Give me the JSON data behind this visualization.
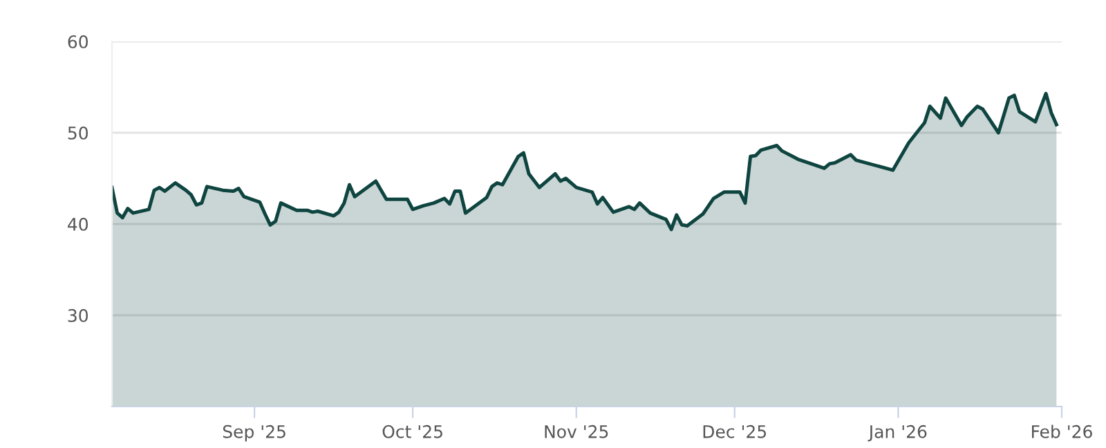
{
  "chart_data": {
    "type": "area",
    "x": [
      "2025-08-05",
      "2025-08-06",
      "2025-08-07",
      "2025-08-08",
      "2025-08-09",
      "2025-08-12",
      "2025-08-13",
      "2025-08-14",
      "2025-08-15",
      "2025-08-17",
      "2025-08-19",
      "2025-08-20",
      "2025-08-21",
      "2025-08-22",
      "2025-08-23",
      "2025-08-26",
      "2025-08-28",
      "2025-08-29",
      "2025-08-30",
      "2025-09-02",
      "2025-09-03",
      "2025-09-04",
      "2025-09-05",
      "2025-09-06",
      "2025-09-09",
      "2025-09-11",
      "2025-09-12",
      "2025-09-13",
      "2025-09-16",
      "2025-09-17",
      "2025-09-18",
      "2025-09-19",
      "2025-09-20",
      "2025-09-24",
      "2025-09-26",
      "2025-09-30",
      "2025-10-01",
      "2025-10-03",
      "2025-10-05",
      "2025-10-07",
      "2025-10-08",
      "2025-10-09",
      "2025-10-10",
      "2025-10-11",
      "2025-10-15",
      "2025-10-16",
      "2025-10-17",
      "2025-10-18",
      "2025-10-21",
      "2025-10-22",
      "2025-10-23",
      "2025-10-25",
      "2025-10-28",
      "2025-10-29",
      "2025-10-30",
      "2025-11-01",
      "2025-11-04",
      "2025-11-05",
      "2025-11-06",
      "2025-11-08",
      "2025-11-11",
      "2025-11-12",
      "2025-11-13",
      "2025-11-15",
      "2025-11-18",
      "2025-11-19",
      "2025-11-20",
      "2025-11-21",
      "2025-11-22",
      "2025-11-25",
      "2025-11-27",
      "2025-11-29",
      "2025-12-02",
      "2025-12-03",
      "2025-12-04",
      "2025-12-05",
      "2025-12-06",
      "2025-12-09",
      "2025-12-10",
      "2025-12-12",
      "2025-12-13",
      "2025-12-16",
      "2025-12-18",
      "2025-12-19",
      "2025-12-20",
      "2025-12-23",
      "2025-12-24",
      "2025-12-31",
      "2026-01-03",
      "2026-01-06",
      "2026-01-07",
      "2026-01-09",
      "2026-01-10",
      "2026-01-13",
      "2026-01-14",
      "2026-01-16",
      "2026-01-17",
      "2026-01-20",
      "2026-01-22",
      "2026-01-23",
      "2026-01-24",
      "2026-01-27",
      "2026-01-29",
      "2026-01-30",
      "2026-01-31"
    ],
    "series": [
      {
        "color": "#0f4540",
        "values": [
          44.0,
          41.2,
          40.7,
          41.7,
          41.2,
          41.6,
          43.7,
          44.0,
          43.6,
          44.5,
          43.7,
          43.2,
          42.1,
          42.3,
          44.1,
          43.7,
          43.6,
          43.9,
          43.0,
          42.4,
          41.1,
          39.9,
          40.3,
          42.3,
          41.5,
          41.5,
          41.3,
          41.4,
          40.9,
          41.3,
          42.3,
          44.3,
          43.0,
          44.7,
          42.7,
          42.7,
          41.6,
          42.0,
          42.3,
          42.8,
          42.2,
          43.6,
          43.6,
          41.2,
          42.9,
          44.1,
          44.5,
          44.3,
          47.4,
          47.8,
          45.5,
          44.0,
          45.5,
          44.7,
          45.0,
          44.0,
          43.5,
          42.2,
          42.9,
          41.3,
          41.9,
          41.6,
          42.3,
          41.2,
          40.5,
          39.4,
          41.0,
          39.9,
          39.8,
          41.1,
          42.8,
          43.5,
          43.5,
          42.3,
          47.4,
          47.5,
          48.1,
          48.6,
          48.0,
          47.4,
          47.1,
          46.5,
          46.1,
          46.6,
          46.7,
          47.6,
          47.0,
          45.9,
          48.9,
          51.1,
          52.9,
          51.6,
          53.8,
          50.8,
          51.7,
          52.9,
          52.6,
          50.0,
          53.8,
          54.1,
          52.3,
          51.2,
          54.3,
          52.2,
          50.9
        ]
      }
    ],
    "xlim": [
      "2025-08-05",
      "2026-02-01"
    ],
    "xticks": [
      {
        "value": "2025-09-01",
        "label": "Sep '25"
      },
      {
        "value": "2025-10-01",
        "label": "Oct '25"
      },
      {
        "value": "2025-11-01",
        "label": "Nov '25"
      },
      {
        "value": "2025-12-01",
        "label": "Dec '25"
      },
      {
        "value": "2026-01-01",
        "label": "Jan '26"
      },
      {
        "value": "2026-02-01",
        "label": "Feb '26"
      }
    ],
    "ylim": [
      20,
      60
    ],
    "yticks": [
      30,
      40,
      50,
      60
    ],
    "grid": "y",
    "legend": false
  }
}
